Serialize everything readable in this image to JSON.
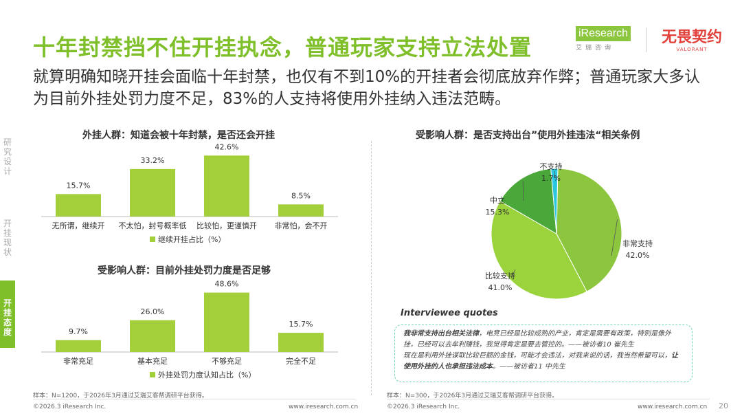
{
  "header": {
    "title": "十年封禁挡不住开挂执念，普通玩家支持立法处置",
    "subtitle": "就算明确知晓开挂会面临十年封禁，也仅有不到10%的开挂者会彻底放弃作弊；普通玩家大多认为目前外挂处罚力度不足，83%的人支持将使用外挂纳入违法范畴。",
    "logo_iresearch": "iResearch",
    "logo_iresearch_sub": "艾瑞咨询",
    "logo_game": "无畏契约",
    "logo_game_sub": "VALORANT"
  },
  "sidebar": {
    "items": [
      {
        "label": "研究设计"
      },
      {
        "label": "开挂现状"
      },
      {
        "label": "开挂态度"
      }
    ]
  },
  "chart_data": [
    {
      "type": "bar",
      "title": "外挂人群：知道会被十年封禁，是否还会开挂",
      "categories": [
        "无所谓，继续开",
        "不太怕，封号概率低",
        "比较怕，更谨慎开",
        "非常怕，会不开"
      ],
      "series": [
        {
          "name": "继续开挂占比（%）",
          "values": [
            15.7,
            33.2,
            42.6,
            8.5
          ]
        }
      ],
      "labels": [
        "15.7%",
        "33.2%",
        "42.6%",
        "8.5%"
      ],
      "ylim": [
        0,
        48
      ],
      "color": "#a3d03a",
      "legend": "bottom"
    },
    {
      "type": "bar",
      "title": "受影响人群：目前外挂处罚力度是否足够",
      "categories": [
        "非常充足",
        "基本充足",
        "不够充足",
        "完全不足"
      ],
      "series": [
        {
          "name": "外挂处罚力度认知占比（%）",
          "values": [
            9.7,
            26.0,
            48.6,
            15.7
          ]
        }
      ],
      "labels": [
        "9.7%",
        "26.0%",
        "48.6%",
        "15.7%"
      ],
      "ylim": [
        0,
        54
      ],
      "color": "#a3d03a",
      "legend": "bottom"
    },
    {
      "type": "pie",
      "title": "受影响人群：是否支持出台”使用外挂违法“相关条例",
      "slices": [
        {
          "label": "非常支持",
          "value": 42.0,
          "text": "42.0%",
          "color": "#8cc63f"
        },
        {
          "label": "比较支持",
          "value": 41.0,
          "text": "41.0%",
          "color": "#9bd33c"
        },
        {
          "label": "中立",
          "value": 15.3,
          "text": "15.3%",
          "color": "#4aa83a"
        },
        {
          "label": "不支持",
          "value": 1.7,
          "text": "1.7%",
          "color": "#2bc6e0"
        }
      ]
    }
  ],
  "quotes": {
    "title": "Interviewee quotes",
    "q1_bold": "我非常支持出台相关法律",
    "q1_rest": "，电竞已经是比较成熟的产业，肯定是需要有政策，特别是像外挂，已经可以去牟利赚钱，我觉得肯定是要去管控的。——被访者10 崔先生",
    "q2_pre": "现在是利用外挂谋取比较巨额的金钱，可能才会违法，对我来说的话，我当然希望可以，",
    "q2_bold": "让使用外挂的人也承担违法成本",
    "q2_rest": "。——被访者11 中先生"
  },
  "footer": {
    "source_left": "样本：N=1200，于2026年3月通过艾瑞艾客帮调研平台获得。",
    "source_right": "样本：N=300，于2026年3月通过艾瑞艾客帮调研平台获得。",
    "copyright_left": "©2026.3 iResearch Inc.",
    "url_left": "www.iresearch.com.cn",
    "copyright_right": "©2026.3 iResearch Inc.",
    "url_right": "www.iresearch.com.cn",
    "page": "20"
  }
}
